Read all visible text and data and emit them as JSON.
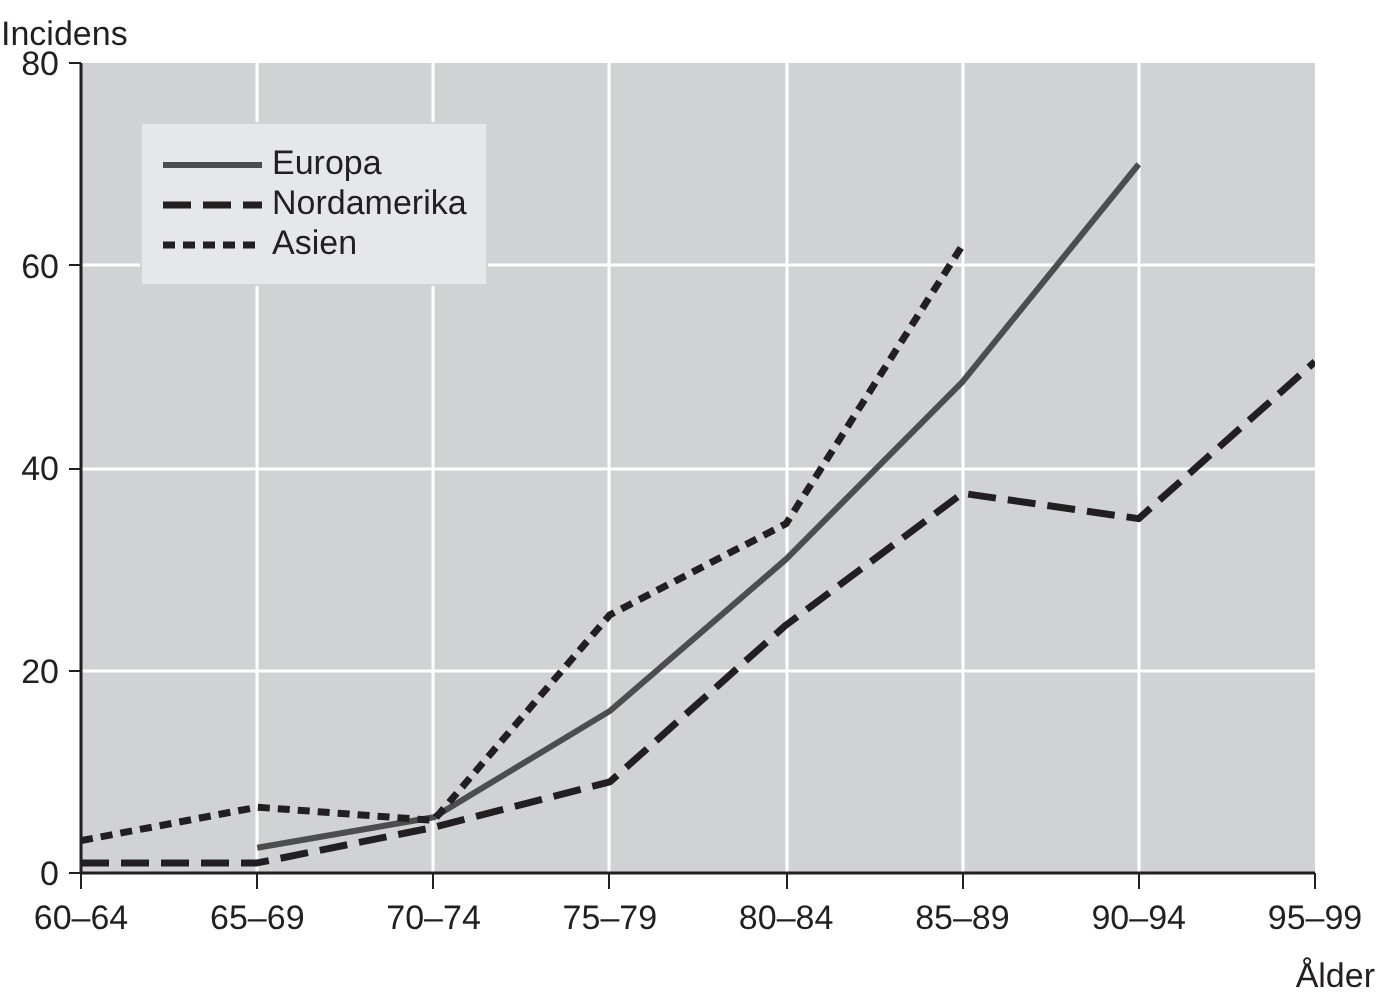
{
  "chart_data": {
    "type": "line",
    "ylabel": "Incidens",
    "xlabel": "Ålder",
    "categories": [
      "60–64",
      "65–69",
      "70–74",
      "75–79",
      "80–84",
      "85–89",
      "90–94",
      "95–99"
    ],
    "series": [
      {
        "name": "Europa",
        "color": "#4d4d4d",
        "line_style": "solid",
        "values": [
          null,
          2.5,
          5.5,
          16,
          31,
          48.5,
          70,
          null
        ]
      },
      {
        "name": "Nordamerika",
        "color": "#231f20",
        "line_style": "dashed",
        "values": [
          1,
          1,
          4.5,
          9,
          24.5,
          37.5,
          35,
          50.5
        ]
      },
      {
        "name": "Asien",
        "color": "#231f20",
        "line_style": "dotted",
        "values": [
          3.2,
          6.5,
          5.2,
          25.5,
          34.5,
          62,
          null,
          null
        ]
      }
    ],
    "ylim": [
      0,
      80
    ],
    "yticks": [
      0,
      20,
      40,
      60,
      80
    ],
    "grid": true,
    "legend": "top left",
    "marker": "none"
  }
}
